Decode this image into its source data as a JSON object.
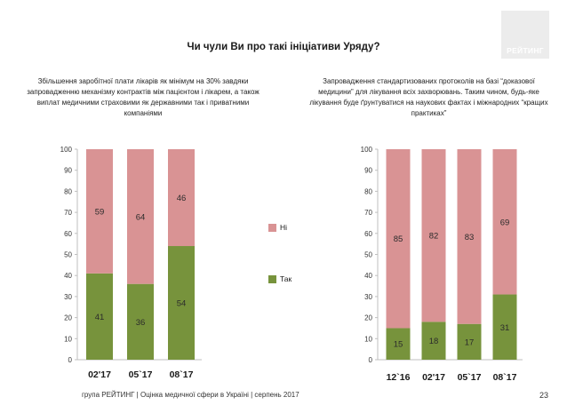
{
  "title": "Чи чули Ви про такі ініціативи Уряду?",
  "logo_text": "РЕЙТИНГ",
  "legend": {
    "no_label": "Ні",
    "yes_label": "Так"
  },
  "colors": {
    "no": "#d99394",
    "yes": "#77933c"
  },
  "footer": "група РЕЙТИНГ | Оцінка медичної сфери в Україні | серпень 2017",
  "page_number": "23",
  "chart_data": [
    {
      "type": "bar",
      "stacked": true,
      "title": "Збільшення заробітної плати лікарів як мінімум на 30% завдяки запровадженню механізму контрактів між пацієнтом і лікарем, а також виплат медичними страховими як державними так і приватними компаніями",
      "categories": [
        "02'17",
        "05`17",
        "08`17"
      ],
      "series": [
        {
          "name": "Так",
          "values": [
            41,
            36,
            54
          ]
        },
        {
          "name": "Ні",
          "values": [
            59,
            64,
            46
          ]
        }
      ],
      "ylim": [
        0,
        100
      ],
      "yticks": [
        0,
        10,
        20,
        30,
        40,
        50,
        60,
        70,
        80,
        90,
        100
      ],
      "legend": "right"
    },
    {
      "type": "bar",
      "stacked": true,
      "title": "Запровадження стандартизованих протоколів на базі “доказової медицини” для лікування всіх захворювань. Таким чином, будь-яке лікування буде ґрунтуватися на наукових фактах і міжнародних “кращих практиках”",
      "categories": [
        "12`16",
        "02'17",
        "05`17",
        "08`17"
      ],
      "series": [
        {
          "name": "Так",
          "values": [
            15,
            18,
            17,
            31
          ]
        },
        {
          "name": "Ні",
          "values": [
            85,
            82,
            83,
            69
          ]
        }
      ],
      "ylim": [
        0,
        100
      ],
      "yticks": [
        0,
        10,
        20,
        30,
        40,
        50,
        60,
        70,
        80,
        90,
        100
      ]
    }
  ]
}
